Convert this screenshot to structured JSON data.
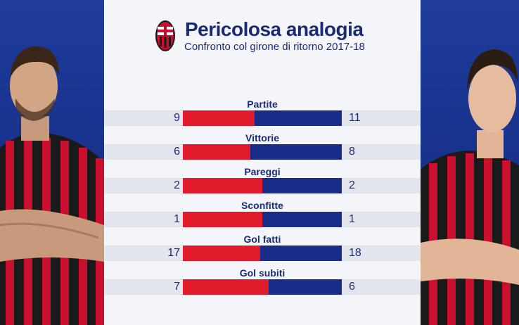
{
  "header": {
    "title": "Pericolosa analogia",
    "subtitle": "Confronto col girone di ritorno 2017-18"
  },
  "colors": {
    "left_bar": "#e11a2c",
    "right_bar": "#1a2c8a",
    "text": "#1b2b72"
  },
  "icons": {
    "logo": "ac-milan-crest-icon"
  },
  "stats": [
    {
      "label": "Partite",
      "left": "9",
      "right": "11"
    },
    {
      "label": "Vittorie",
      "left": "6",
      "right": "8"
    },
    {
      "label": "Pareggi",
      "left": "2",
      "right": "2"
    },
    {
      "label": "Sconfitte",
      "left": "1",
      "right": "1"
    },
    {
      "label": "Gol fatti",
      "left": "17",
      "right": "18"
    },
    {
      "label": "Gol subiti",
      "left": "7",
      "right": "6"
    }
  ]
}
